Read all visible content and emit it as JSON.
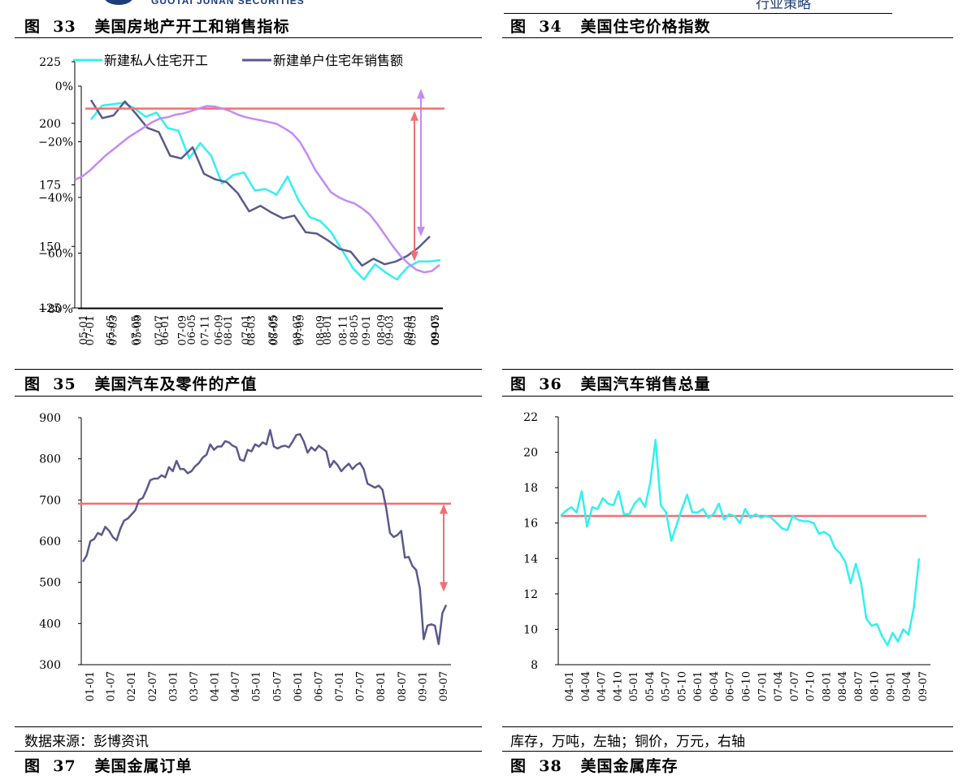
{
  "header": {
    "english": "GUOTAI JUNAN SECURITIES",
    "chinese": "行业策略"
  },
  "panels": {
    "p33": {
      "title": "图  33   美国房地产开工和销售指标"
    },
    "p34": {
      "title": "图  34   美国住宅价格指数"
    },
    "p35": {
      "title": "图  35   美国汽车及零件的产值"
    },
    "p36": {
      "title": "图  36   美国汽车销售总量"
    },
    "p37": {
      "title": "图  37   美国金属订单"
    },
    "p38": {
      "title": "图  38   美国金属库存"
    }
  },
  "notes": {
    "left": "数据来源：彭博资讯",
    "right": "库存，万吨，左轴；铜价，万元，右轴"
  },
  "chart_data": [
    {
      "id": "c33",
      "type": "line",
      "ylim": [
        -80,
        0
      ],
      "yticks": [
        "0%",
        "-20%",
        "-40%",
        "-60%",
        "-80%"
      ],
      "xtick_labels": [
        "07-01",
        "07-03",
        "07-05",
        "07-07",
        "07-09",
        "07-11",
        "08-01",
        "08-03",
        "08-05",
        "08-07",
        "08-09",
        "08-11",
        "09-01",
        "09-03",
        "09-05",
        "09-07"
      ],
      "colors": [
        "#33f0f0",
        "#5a5a8c"
      ],
      "annotation": {
        "type": "double-arrow",
        "color": "#c58af3",
        "from": -1,
        "to": -54
      },
      "series": [
        {
          "name": "新建私人住宅开工",
          "values": [
            -12,
            -7,
            -6.5,
            -6,
            -8,
            -11,
            -9.5,
            -15,
            -16,
            -26,
            -20.5,
            -25,
            -35,
            -32,
            -31,
            -37.5,
            -37,
            -39,
            -32.5,
            -41,
            -47,
            -48.5,
            -52.5,
            -59,
            -65.5,
            -69.5,
            -64,
            -67,
            -69.5,
            -65,
            -63,
            -63,
            -62.5
          ]
        },
        {
          "name": "新建单户住宅年销售额",
          "values": [
            -5,
            -11.5,
            -10.5,
            -5.5,
            -10,
            -15,
            -16.5,
            -25,
            -26,
            -22,
            -31.5,
            -33.5,
            -34.5,
            -38.5,
            -45,
            -43,
            -45.5,
            -47.5,
            -46.5,
            -52.5,
            -53,
            -55.5,
            -58.5,
            -59.5,
            -64.5,
            -62,
            -64,
            -63,
            -61,
            -58,
            -54
          ]
        }
      ]
    },
    {
      "id": "c34",
      "type": "line",
      "ylim": [
        125,
        225
      ],
      "yticks": [
        "225",
        "200",
        "175",
        "150",
        "125"
      ],
      "xtick_labels": [
        "05-01",
        "05-05",
        "05-09",
        "06-01",
        "06-05",
        "06-09",
        "07-01",
        "07-05",
        "07-09",
        "08-01",
        "08-05",
        "08-09",
        "09-01",
        "09-05"
      ],
      "colors": [
        "#c58af3"
      ],
      "reference_line": {
        "value": 206,
        "color": "#f36f73"
      },
      "annotation": {
        "type": "double-arrow",
        "color": "#f36f73",
        "from": 205,
        "to": 144
      },
      "series": [
        {
          "name": "",
          "values": [
            177,
            178.5,
            181,
            184,
            187,
            189.5,
            192,
            194.5,
            196.5,
            198.5,
            200.5,
            202,
            202.5,
            203.5,
            204,
            205,
            206,
            207,
            206.8,
            206,
            205,
            203.5,
            202.5,
            201.8,
            201.2,
            200.5,
            199.8,
            198,
            196,
            192.5,
            187,
            181,
            176.5,
            172,
            170,
            168.5,
            167.5,
            165.5,
            163,
            159,
            154.5,
            150,
            146,
            143,
            140.5,
            139.5,
            140,
            142.5
          ]
        }
      ]
    },
    {
      "id": "c35",
      "type": "line",
      "ylim": [
        300,
        900
      ],
      "yticks": [
        "900",
        "800",
        "700",
        "600",
        "500",
        "400",
        "300"
      ],
      "xtick_labels": [
        "01-01",
        "01-07",
        "02-01",
        "02-07",
        "03-01",
        "03-07",
        "04-01",
        "04-07",
        "05-01",
        "05-07",
        "06-01",
        "06-07",
        "07-01",
        "07-07",
        "08-01",
        "08-07",
        "09-01",
        "09-07"
      ],
      "colors": [
        "#5a5a8c"
      ],
      "reference_line": {
        "value": 691,
        "color": "#f36f73"
      },
      "annotation": {
        "type": "double-arrow",
        "color": "#f36f73",
        "from": 690,
        "to": 477
      },
      "series": [
        {
          "name": "",
          "values": [
            550,
            565,
            600,
            605,
            620,
            615,
            635,
            625,
            610,
            602,
            630,
            650,
            655,
            665,
            675,
            700,
            705,
            725,
            748,
            752,
            752,
            760,
            755,
            780,
            770,
            795,
            775,
            775,
            765,
            770,
            782,
            790,
            803,
            810,
            835,
            822,
            830,
            830,
            843,
            840,
            832,
            828,
            798,
            795,
            822,
            818,
            835,
            830,
            840,
            835,
            870,
            830,
            825,
            830,
            832,
            828,
            842,
            858,
            860,
            842,
            815,
            828,
            820,
            832,
            825,
            818,
            780,
            795,
            785,
            770,
            780,
            788,
            775,
            785,
            790,
            775,
            740,
            735,
            730,
            735,
            725,
            680,
            620,
            610,
            615,
            625,
            560,
            562,
            540,
            530,
            485,
            362,
            395,
            398,
            395,
            350,
            425,
            445
          ]
        }
      ]
    },
    {
      "id": "c36",
      "type": "line",
      "ylim": [
        8,
        22
      ],
      "yticks": [
        "22",
        "20",
        "18",
        "16",
        "14",
        "12",
        "10",
        "8"
      ],
      "xtick_labels": [
        "04-01",
        "04-04",
        "04-07",
        "04-10",
        "05-01",
        "05-04",
        "05-07",
        "05-10",
        "06-01",
        "06-04",
        "06-07",
        "06-10",
        "07-01",
        "07-04",
        "07-07",
        "07-10",
        "08-01",
        "08-04",
        "08-07",
        "08-10",
        "09-01",
        "09-04",
        "09-07"
      ],
      "colors": [
        "#33f0f0"
      ],
      "reference_line": {
        "value": 16.4,
        "color": "#f36f73"
      },
      "series": [
        {
          "name": "",
          "values": [
            16.4,
            16.7,
            16.9,
            16.6,
            17.8,
            15.8,
            16.9,
            16.8,
            17.4,
            17.1,
            17.0,
            17.8,
            16.5,
            16.5,
            17.1,
            17.4,
            16.9,
            18.3,
            20.7,
            17.0,
            16.6,
            15.0,
            15.9,
            16.8,
            17.6,
            16.6,
            16.6,
            16.8,
            16.3,
            16.5,
            17.1,
            16.2,
            16.5,
            16.4,
            16.0,
            16.8,
            16.3,
            16.5,
            16.3,
            16.4,
            16.3,
            16.0,
            15.7,
            15.6,
            16.4,
            16.2,
            16.1,
            16.1,
            16.0,
            15.4,
            15.5,
            15.3,
            14.6,
            14.3,
            13.8,
            12.6,
            13.7,
            12.6,
            10.6,
            10.2,
            10.3,
            9.6,
            9.1,
            9.8,
            9.3,
            10.0,
            9.7,
            11.2,
            14.0
          ]
        }
      ]
    }
  ]
}
